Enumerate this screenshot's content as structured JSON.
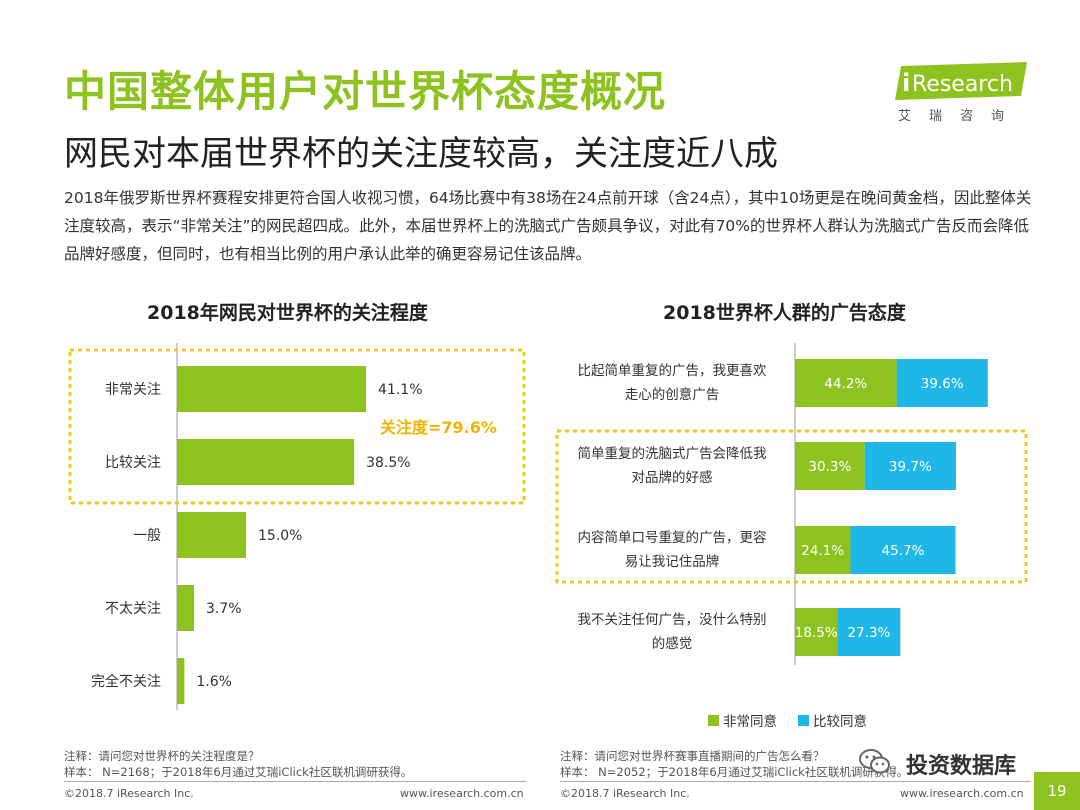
{
  "header": {
    "title": "中国整体用户对世界杯态度概况",
    "subtitle": "网民对本届世界杯的关注度较高，关注度近八成",
    "description": "2018年俄罗斯世界杯赛程安排更符合国人收视习惯，64场比赛中有38场在24点前开球（含24点），其中10场更是在晚间黄金档，因此整体关注度较高，表示“非常关注”的网民超四成。此外，本届世界杯上的洗脑式广告颇具争议，对此有70%的世界杯人群认为洗脑式广告反而会降低品牌好感度，但同时，也有相当比例的用户承认此举的确更容易记住该品牌。"
  },
  "logo": {
    "brand_i": "i",
    "brand_rest": "Research",
    "sub": "艾瑞咨询"
  },
  "colors": {
    "green": "#8dc21f",
    "blue": "#1fb7e8",
    "highlight_border": "#f5c518",
    "highlight_text": "#f0b400"
  },
  "chart_data": [
    {
      "type": "bar",
      "orientation": "horizontal",
      "title": "2018年网民对世界杯的关注程度",
      "categories": [
        "非常关注",
        "比较关注",
        "一般",
        "不太关注",
        "完全不关注"
      ],
      "values": [
        41.1,
        38.5,
        15.0,
        3.7,
        1.6
      ],
      "value_labels": [
        "41.1%",
        "38.5%",
        "15.0%",
        "3.7%",
        "1.6%"
      ],
      "xlim": [
        0,
        100
      ],
      "annotation": "关注度=79.6%",
      "note_question": "注释：请问您对世界杯的关注程度是？",
      "note_sample": "样本：  N=2168；于2018年6月通过艾瑞iClick社区联机调研获得。"
    },
    {
      "type": "bar",
      "orientation": "horizontal",
      "stacked": true,
      "title": "2018世界杯人群的广告态度",
      "categories": [
        [
          "比起简单重复的广告，我更喜欢",
          "走心的创意广告"
        ],
        [
          "简单重复的洗脑式广告会降低我",
          "对品牌的好感"
        ],
        [
          "内容简单口号重复的广告，更容",
          "易让我记住品牌"
        ],
        [
          "我不关注任何广告，没什么特别",
          "的感觉"
        ]
      ],
      "series": [
        {
          "name": "非常同意",
          "values": [
            44.2,
            30.3,
            24.1,
            18.5
          ],
          "labels": [
            "44.2%",
            "30.3%",
            "24.1%",
            "18.5%"
          ]
        },
        {
          "name": "比较同意",
          "values": [
            39.6,
            39.7,
            45.7,
            27.3
          ],
          "labels": [
            "39.6%",
            "39.7%",
            "45.7%",
            "27.3%"
          ]
        }
      ],
      "xlim": [
        0,
        100
      ],
      "legend_position": "bottom",
      "note_question": "注释：请问您对世界杯赛事直播期间的广告怎么看？",
      "note_sample": "样本：  N=2052；于2018年6月通过艾瑞iClick社区联机调研获得。"
    }
  ],
  "footer": {
    "copyright_left": "©2018.7 iResearch Inc.",
    "url_left": "www.iresearch.com.cn",
    "copyright_right": "©2018.7 iResearch Inc.",
    "url_right": "www.iresearch.com.cn",
    "page_number": "19"
  },
  "watermark": {
    "text": "投资数据库"
  }
}
